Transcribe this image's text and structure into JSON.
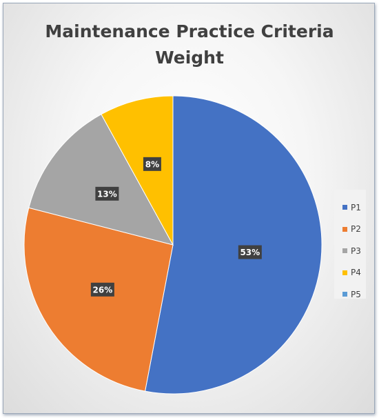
{
  "chart_data": {
    "type": "pie",
    "title_lines": [
      "Maintenance Practice Criteria",
      "Weight"
    ],
    "categories": [
      "P1",
      "P2",
      "P3",
      "P4",
      "P5"
    ],
    "values": [
      53,
      26,
      13,
      8,
      0
    ],
    "data_labels": [
      "53%",
      "26%",
      "13%",
      "8%",
      ""
    ],
    "colors": [
      "#4472c4",
      "#ed7d31",
      "#a5a5a5",
      "#ffc000",
      "#5b9bd5"
    ],
    "legend_position": "right",
    "start_angle": "12 o'clock",
    "direction": "clockwise"
  }
}
